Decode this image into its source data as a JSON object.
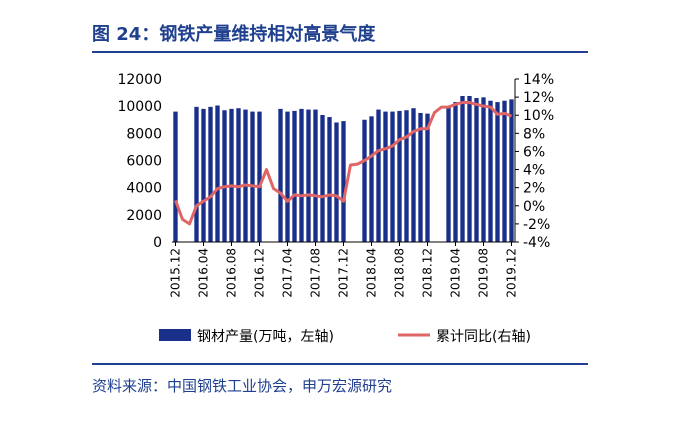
{
  "header": {
    "title": "图 24：钢铁产量维持相对高景气度"
  },
  "footer": {
    "source": "资料来源：中国钢铁工业协会，申万宏源研究"
  },
  "colors": {
    "bar": "#1a2f8a",
    "line": "#e06666",
    "accent": "#1f3f8f"
  },
  "chart_data": {
    "type": "bar+line",
    "title": "",
    "categories": [
      "2015.12",
      "2016.01",
      "2016.02",
      "2016.03",
      "2016.04",
      "2016.05",
      "2016.06",
      "2016.07",
      "2016.08",
      "2016.09",
      "2016.10",
      "2016.11",
      "2016.12",
      "2017.01",
      "2017.02",
      "2017.03",
      "2017.04",
      "2017.05",
      "2017.06",
      "2017.07",
      "2017.08",
      "2017.09",
      "2017.10",
      "2017.11",
      "2017.12",
      "2018.01",
      "2018.02",
      "2018.03",
      "2018.04",
      "2018.05",
      "2018.06",
      "2018.07",
      "2018.08",
      "2018.09",
      "2018.10",
      "2018.11",
      "2018.12",
      "2019.01",
      "2019.02",
      "2019.03",
      "2019.04",
      "2019.05",
      "2019.06",
      "2019.07",
      "2019.08",
      "2019.09",
      "2019.10",
      "2019.11",
      "2019.12"
    ],
    "x_tick_labels": [
      "2015.12",
      "2016.04",
      "2016.08",
      "2016.12",
      "2017.04",
      "2017.08",
      "2017.12",
      "2018.04",
      "2018.08",
      "2018.12",
      "2019.04",
      "2019.08",
      "2019.12"
    ],
    "series": [
      {
        "name": "钢材产量(万吨，左轴)",
        "type": "bar",
        "axis": "left",
        "values": [
          9600,
          null,
          null,
          9950,
          9800,
          9950,
          10050,
          9700,
          9800,
          9850,
          9750,
          9600,
          9600,
          null,
          null,
          9800,
          9600,
          9650,
          9800,
          9750,
          9750,
          9350,
          9200,
          8800,
          8900,
          null,
          null,
          9000,
          9250,
          9750,
          9600,
          9600,
          9650,
          9700,
          9850,
          9500,
          9450,
          null,
          null,
          9900,
          10300,
          10750,
          10750,
          10600,
          10650,
          10400,
          10300,
          10400,
          10500
        ]
      },
      {
        "name": "累计同比(右轴)",
        "type": "line",
        "axis": "right",
        "values": [
          0.6,
          -1.5,
          -2.0,
          0.0,
          0.5,
          1.0,
          1.9,
          2.1,
          2.2,
          2.1,
          2.3,
          2.2,
          2.1,
          4.0,
          1.9,
          1.4,
          0.5,
          1.2,
          1.1,
          1.2,
          1.1,
          1.0,
          1.2,
          1.1,
          0.5,
          4.5,
          4.6,
          5.0,
          5.5,
          6.1,
          6.3,
          6.6,
          7.3,
          7.6,
          8.2,
          8.5,
          8.5,
          10.3,
          10.9,
          10.9,
          11.2,
          11.4,
          11.4,
          11.2,
          11.0,
          10.9,
          10.1,
          10.2,
          9.9
        ]
      }
    ],
    "y_left": {
      "ticks": [
        "0",
        "2000",
        "4000",
        "6000",
        "8000",
        "10000",
        "12000"
      ],
      "range": [
        0,
        12000
      ]
    },
    "y_right": {
      "ticks": [
        "-4%",
        "-2%",
        "0%",
        "2%",
        "4%",
        "6%",
        "8%",
        "10%",
        "12%",
        "14%"
      ],
      "range": [
        -4,
        14
      ]
    },
    "grid": false,
    "legend": {
      "position": "bottom",
      "items": [
        {
          "label": "钢材产量(万吨，左轴)",
          "marker": "bar"
        },
        {
          "label": "累计同比(右轴)",
          "marker": "line"
        }
      ]
    }
  }
}
